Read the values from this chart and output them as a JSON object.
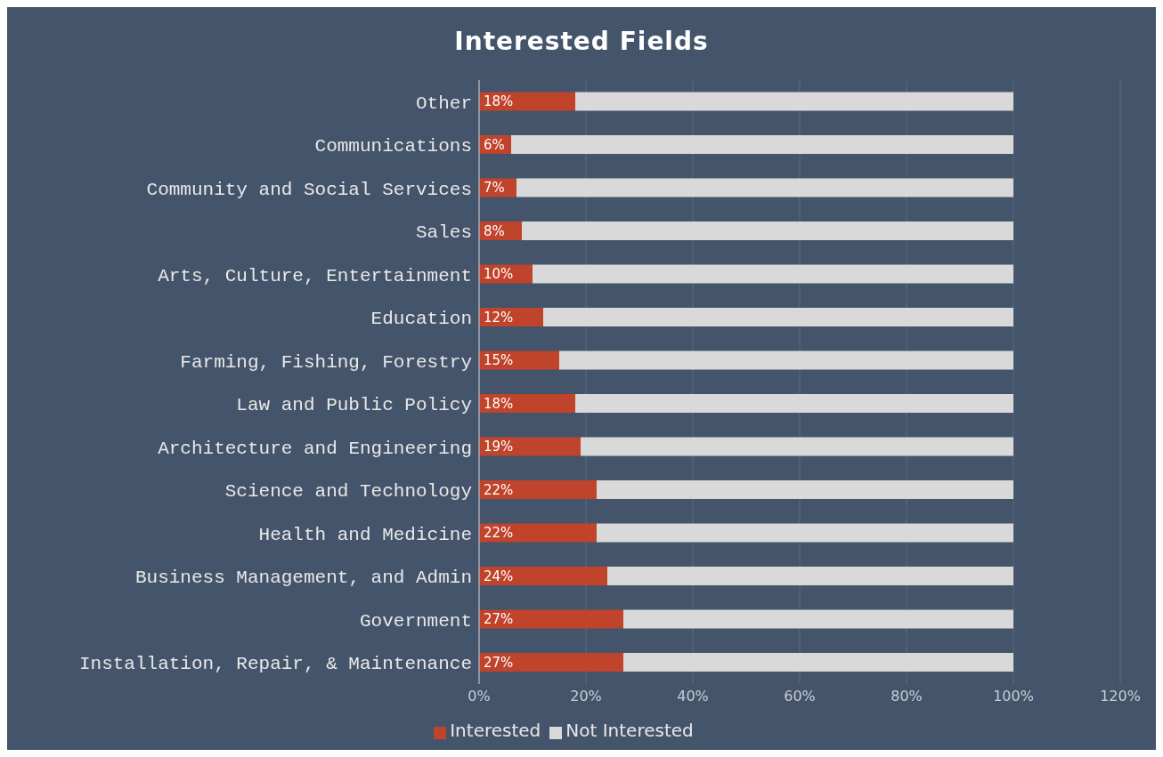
{
  "chart_data": {
    "type": "bar",
    "title": "Interested Fields",
    "orientation": "horizontal",
    "stacked": true,
    "categories": [
      "Other",
      "Communications",
      "Community and Social Services",
      "Sales",
      "Arts, Culture, Entertainment",
      "Education",
      "Farming, Fishing, Forestry",
      "Law and Public Policy",
      "Architecture and Engineering",
      "Science and Technology",
      "Health and Medicine",
      "Business Management, and Admin",
      "Government",
      "Installation, Repair, & Maintenance"
    ],
    "series": [
      {
        "name": "Interested",
        "color": "#c0432b",
        "values": [
          18,
          6,
          7,
          8,
          10,
          12,
          15,
          18,
          19,
          22,
          22,
          24,
          27,
          27
        ],
        "value_labels": [
          "18%",
          "6%",
          "7%",
          "8%",
          "10%",
          "12%",
          "15%",
          "18%",
          "19%",
          "22%",
          "22%",
          "24%",
          "27%",
          "27%"
        ]
      },
      {
        "name": "Not Interested",
        "color": "#d9d9d9",
        "values": [
          82,
          94,
          93,
          92,
          90,
          88,
          85,
          82,
          81,
          78,
          78,
          76,
          73,
          73
        ]
      }
    ],
    "xlim": [
      0,
      120
    ],
    "xticks": [
      {
        "value": 0,
        "label": "0%"
      },
      {
        "value": 20,
        "label": "20%"
      },
      {
        "value": 40,
        "label": "40%"
      },
      {
        "value": 60,
        "label": "60%"
      },
      {
        "value": 80,
        "label": "80%"
      },
      {
        "value": 100,
        "label": "100%"
      },
      {
        "value": 120,
        "label": "120%"
      }
    ],
    "grid": "x",
    "legend": "bottom"
  }
}
